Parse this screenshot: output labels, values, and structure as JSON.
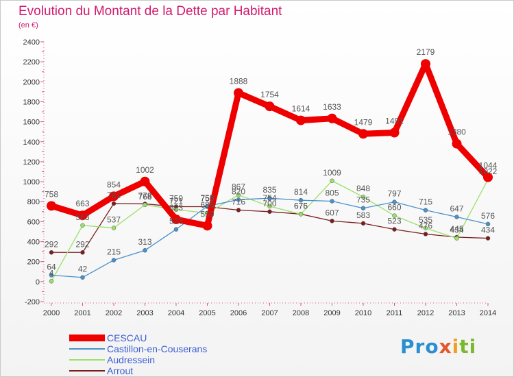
{
  "header": {
    "title": "Evolution du Montant de la Dette par Habitant",
    "unit": "(en €)"
  },
  "logo": {
    "text": "Proxiti",
    "colors": [
      "#2a8fd0",
      "#e6562b",
      "#f0a020",
      "#7ab82e"
    ]
  },
  "chart_data": {
    "type": "line",
    "x": [
      "2000",
      "2001",
      "2002",
      "2003",
      "2004",
      "2005",
      "2006",
      "2007",
      "2008",
      "2009",
      "2010",
      "2011",
      "2012",
      "2013",
      "2014"
    ],
    "ylim": [
      -200,
      2400
    ],
    "yticks": [
      -200,
      0,
      200,
      400,
      600,
      800,
      1000,
      1200,
      1400,
      1600,
      1800,
      2000,
      2200,
      2400
    ],
    "grid": false,
    "legend_position": "bottom-left",
    "series": [
      {
        "name": "Arrout",
        "color": "#7b1e1e",
        "values": [
          292,
          292,
          781,
          778,
          750,
          750,
          716,
          700,
          676,
          607,
          583,
          523,
          476,
          445,
          434
        ]
      },
      {
        "name": "Audressein",
        "color": "#99e06a",
        "values": [
          4,
          563,
          537,
          768,
          721,
          686,
          867,
          754,
          675,
          1009,
          848,
          660,
          535,
          434,
          1022
        ]
      },
      {
        "name": "Castillon-en-Couserans",
        "color": "#4a90cc",
        "values": [
          64,
          42,
          215,
          313,
          523,
          755,
          820,
          835,
          814,
          805,
          735,
          797,
          715,
          647,
          576
        ]
      },
      {
        "name": "CESCAU",
        "color": "#ee0000",
        "values": [
          758,
          663,
          854,
          1002,
          623,
          559,
          1888,
          1754,
          1614,
          1633,
          1479,
          1491,
          2179,
          1380,
          1044
        ]
      }
    ],
    "legend_order": [
      "CESCAU",
      "Castillon-en-Couserans",
      "Audressein",
      "Arrout"
    ]
  }
}
